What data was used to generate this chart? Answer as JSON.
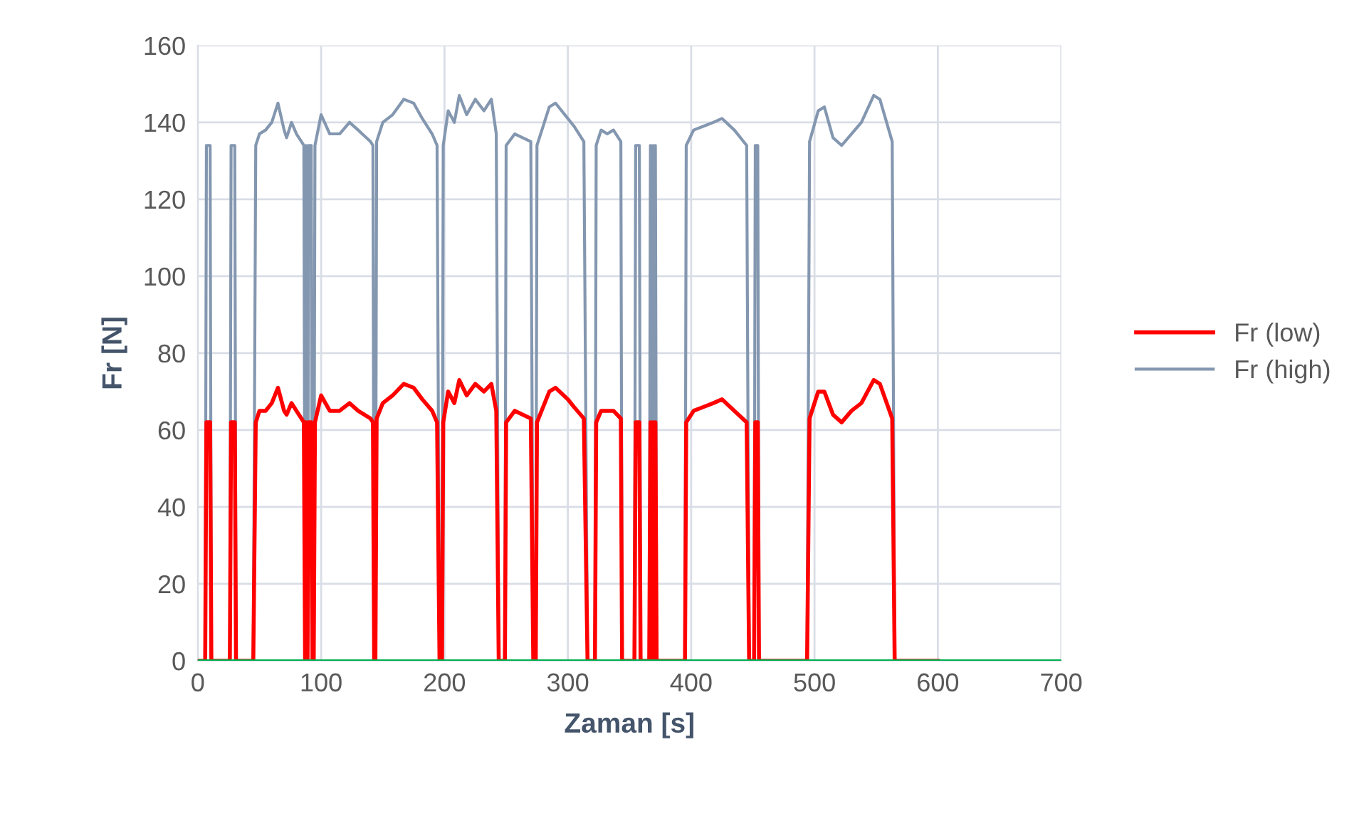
{
  "chart_data": {
    "type": "line",
    "xlabel": "Zaman [s]",
    "ylabel": "Fr [N]",
    "xlim": [
      0,
      700
    ],
    "xticks": [
      0,
      100,
      200,
      300,
      400,
      500,
      600,
      700
    ],
    "ylim": [
      0,
      160
    ],
    "yticks": [
      0,
      20,
      40,
      60,
      80,
      100,
      120,
      140,
      160
    ],
    "grid": true,
    "legend": "right",
    "marker": "none",
    "line_style": "solid",
    "series": [
      {
        "name": "Fr (low)",
        "color": "#ff0000",
        "x": [
          0,
          6,
          7,
          10,
          11,
          26,
          27,
          30,
          31,
          45,
          47,
          50,
          55,
          60,
          65,
          70,
          72,
          76,
          80,
          86,
          87,
          88,
          89,
          90,
          92,
          93,
          94,
          95,
          100,
          107,
          115,
          123,
          130,
          140,
          142,
          143,
          144,
          145,
          150,
          158,
          167,
          175,
          182,
          190,
          194,
          196,
          198,
          199,
          203,
          208,
          212,
          218,
          225,
          232,
          238,
          242,
          244,
          249,
          250,
          257,
          270,
          272,
          274,
          275,
          285,
          290,
          300,
          305,
          313,
          316,
          322,
          323,
          327,
          332,
          337,
          343,
          344,
          354,
          355,
          358,
          359,
          366,
          367,
          368,
          369,
          370,
          371,
          372,
          395,
          396,
          402,
          410,
          418,
          425,
          435,
          445,
          447,
          451,
          452,
          454,
          455,
          494,
          496,
          503,
          508,
          515,
          522,
          530,
          538,
          548,
          553,
          563,
          565,
          600
        ],
        "values": [
          0,
          0,
          62,
          62,
          0,
          0,
          62,
          62,
          0,
          0,
          62,
          65,
          65,
          67,
          71,
          65,
          64,
          67,
          65,
          62,
          0,
          62,
          0,
          62,
          62,
          0,
          0,
          62,
          69,
          65,
          65,
          67,
          65,
          63,
          62,
          0,
          0,
          63,
          67,
          69,
          72,
          71,
          68,
          65,
          62,
          0,
          0,
          62,
          70,
          67,
          73,
          69,
          72,
          70,
          72,
          65,
          0,
          0,
          62,
          65,
          63,
          0,
          0,
          62,
          70,
          71,
          68,
          66,
          63,
          0,
          0,
          62,
          65,
          65,
          65,
          63,
          0,
          0,
          62,
          62,
          0,
          0,
          62,
          0,
          62,
          0,
          62,
          0,
          0,
          62,
          65,
          66,
          67,
          68,
          65,
          62,
          0,
          0,
          62,
          62,
          0,
          0,
          63,
          70,
          70,
          64,
          62,
          65,
          67,
          73,
          72,
          63,
          0,
          0
        ]
      },
      {
        "name": "Fr (high)",
        "color": "#8497b0",
        "x": [
          0,
          6,
          7,
          10,
          11,
          26,
          27,
          30,
          31,
          45,
          47,
          50,
          55,
          60,
          65,
          70,
          72,
          76,
          80,
          86,
          87,
          88,
          89,
          90,
          92,
          93,
          94,
          95,
          100,
          107,
          115,
          123,
          130,
          140,
          142,
          143,
          144,
          145,
          150,
          158,
          167,
          175,
          182,
          190,
          194,
          196,
          198,
          199,
          203,
          208,
          212,
          218,
          225,
          232,
          238,
          242,
          244,
          249,
          250,
          257,
          270,
          272,
          274,
          275,
          285,
          290,
          300,
          305,
          313,
          316,
          322,
          323,
          327,
          332,
          337,
          343,
          344,
          354,
          355,
          358,
          359,
          366,
          367,
          368,
          369,
          370,
          371,
          372,
          395,
          396,
          402,
          410,
          418,
          425,
          435,
          445,
          447,
          451,
          452,
          454,
          455,
          494,
          496,
          503,
          508,
          515,
          522,
          530,
          538,
          548,
          553,
          563,
          565,
          600
        ],
        "values": [
          0,
          0,
          134,
          134,
          0,
          0,
          134,
          134,
          0,
          0,
          134,
          137,
          138,
          140,
          145,
          138,
          136,
          140,
          137,
          134,
          0,
          134,
          0,
          134,
          134,
          0,
          0,
          134,
          142,
          137,
          137,
          140,
          138,
          135,
          134,
          0,
          0,
          135,
          140,
          142,
          146,
          145,
          141,
          137,
          134,
          0,
          0,
          134,
          143,
          140,
          147,
          142,
          146,
          143,
          146,
          137,
          0,
          0,
          134,
          137,
          135,
          0,
          0,
          134,
          144,
          145,
          141,
          139,
          135,
          0,
          0,
          134,
          138,
          137,
          138,
          135,
          0,
          0,
          134,
          134,
          0,
          0,
          134,
          0,
          134,
          0,
          134,
          0,
          0,
          134,
          138,
          139,
          140,
          141,
          138,
          134,
          0,
          0,
          134,
          134,
          0,
          0,
          135,
          143,
          144,
          136,
          134,
          137,
          140,
          147,
          146,
          135,
          0,
          0
        ]
      },
      {
        "color": "#00b050",
        "x": [
          0,
          700
        ],
        "values": [
          0,
          0
        ]
      }
    ]
  }
}
